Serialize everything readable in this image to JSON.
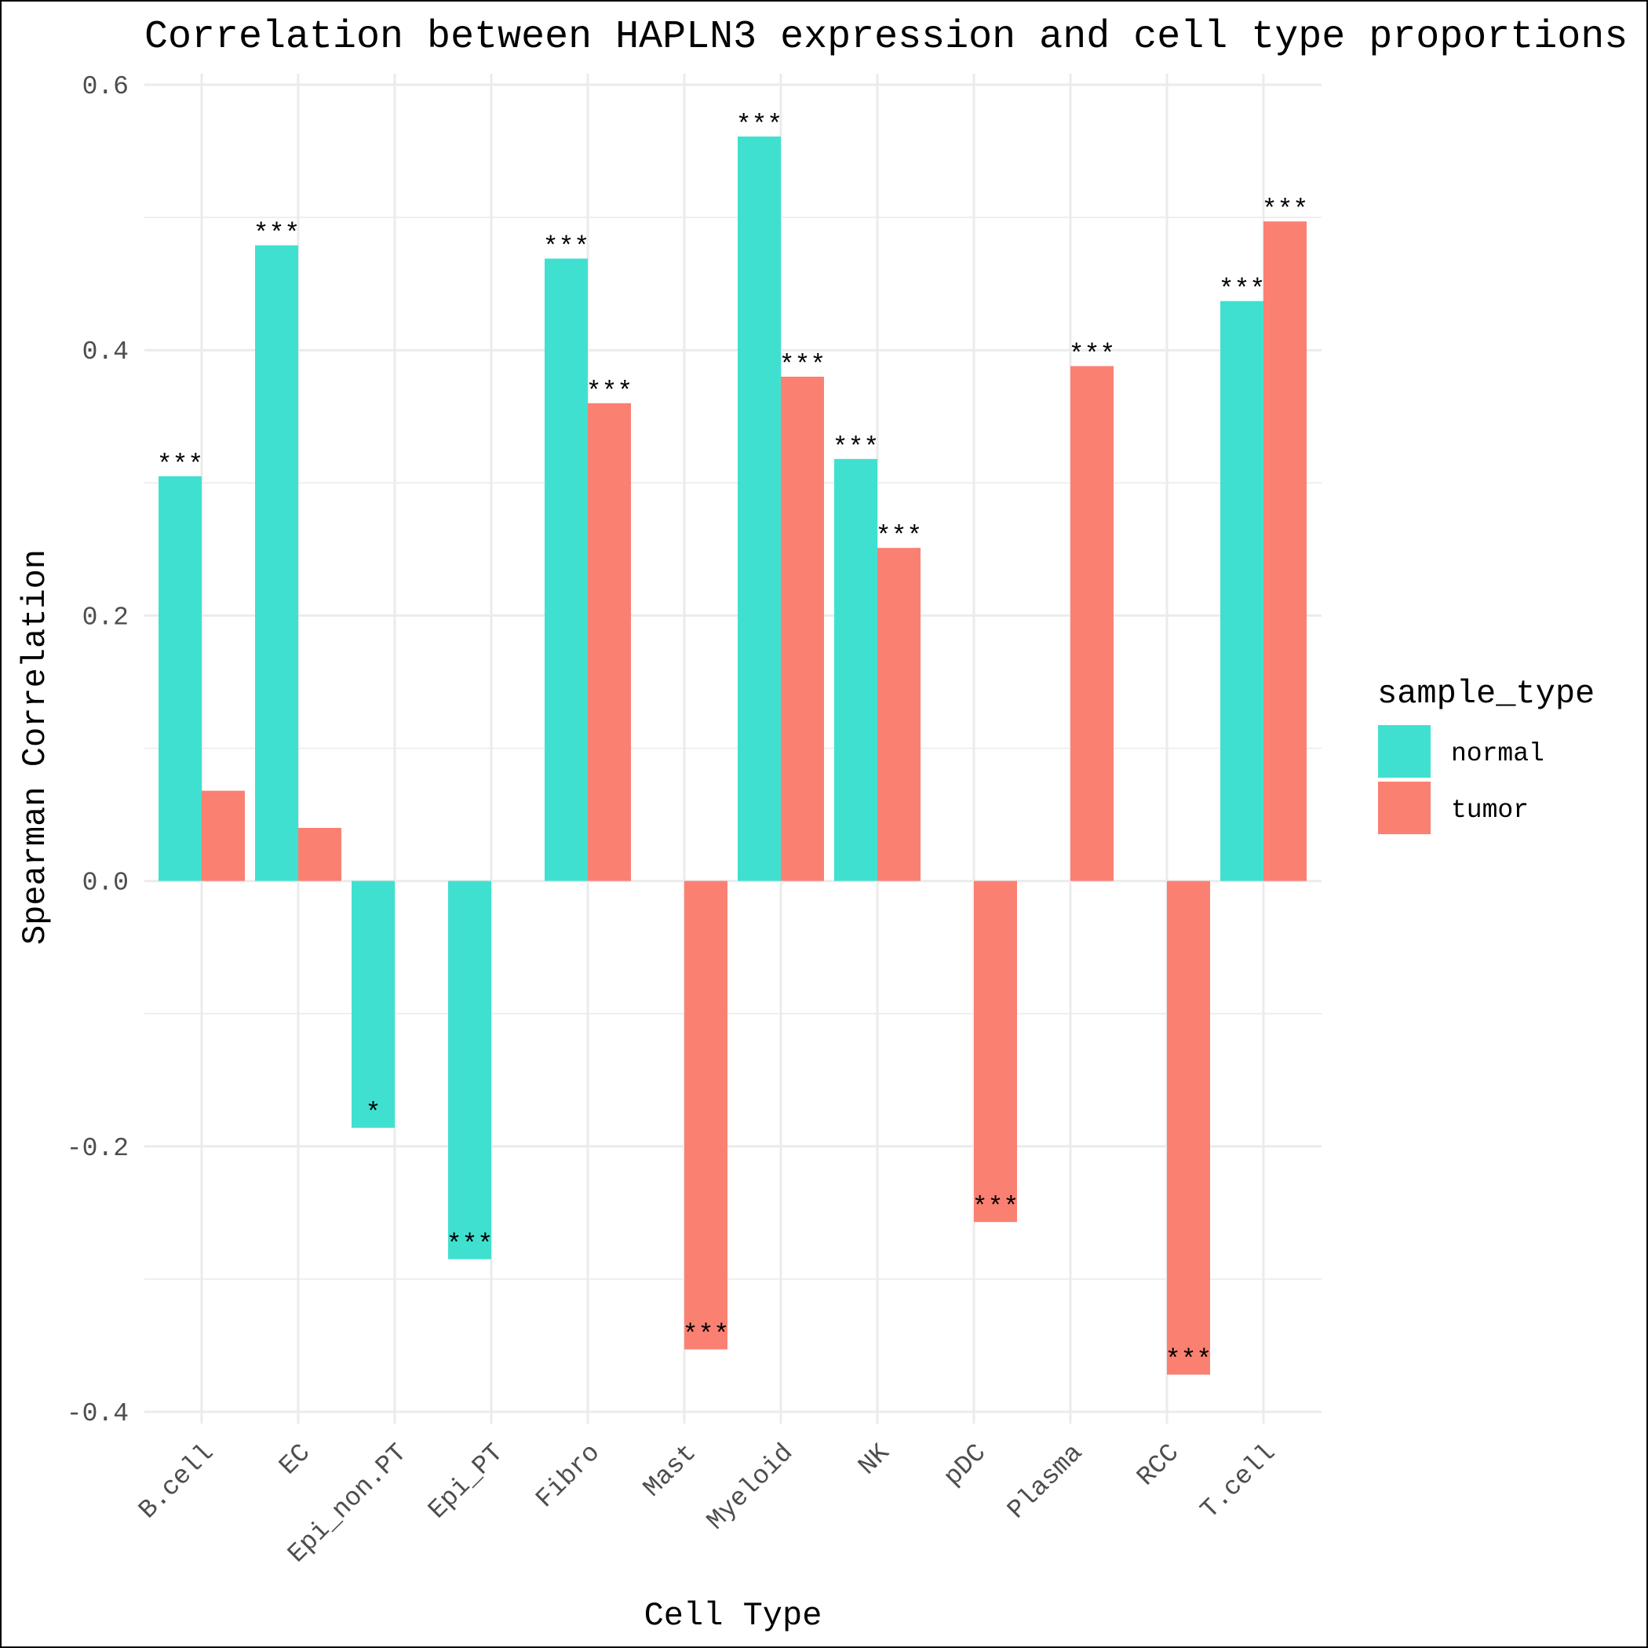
{
  "chart_data": {
    "type": "bar",
    "title": "Correlation between HAPLN3 expression and cell type proportions",
    "xlabel": "Cell Type",
    "ylabel": "Spearman Correlation",
    "categories": [
      "B.cell",
      "EC",
      "Epi_non.PT",
      "Epi_PT",
      "Fibro",
      "Mast",
      "Myeloid",
      "NK",
      "pDC",
      "Plasma",
      "RCC",
      "T.cell"
    ],
    "y_ticks": [
      "-0.4",
      "-0.2",
      "0.0",
      "0.2",
      "0.4",
      "0.6"
    ],
    "ylim": [
      -0.4,
      0.6
    ],
    "grid": true,
    "legend": {
      "title": "sample_type",
      "position": "right"
    },
    "series": [
      {
        "name": "normal",
        "color": "#40E0D0",
        "values": [
          0.305,
          0.479,
          -0.186,
          -0.285,
          0.469,
          null,
          0.561,
          0.318,
          null,
          null,
          null,
          0.437
        ],
        "significance": [
          "***",
          "***",
          "*",
          "***",
          "***",
          null,
          "***",
          "***",
          null,
          null,
          null,
          "***"
        ]
      },
      {
        "name": "tumor",
        "color": "#FA8072",
        "values": [
          0.068,
          0.04,
          null,
          null,
          0.36,
          -0.353,
          0.38,
          0.251,
          -0.257,
          0.388,
          -0.372,
          0.497
        ],
        "significance": [
          null,
          null,
          null,
          null,
          "***",
          "***",
          "***",
          "***",
          "***",
          "***",
          "***",
          "***"
        ]
      }
    ]
  }
}
